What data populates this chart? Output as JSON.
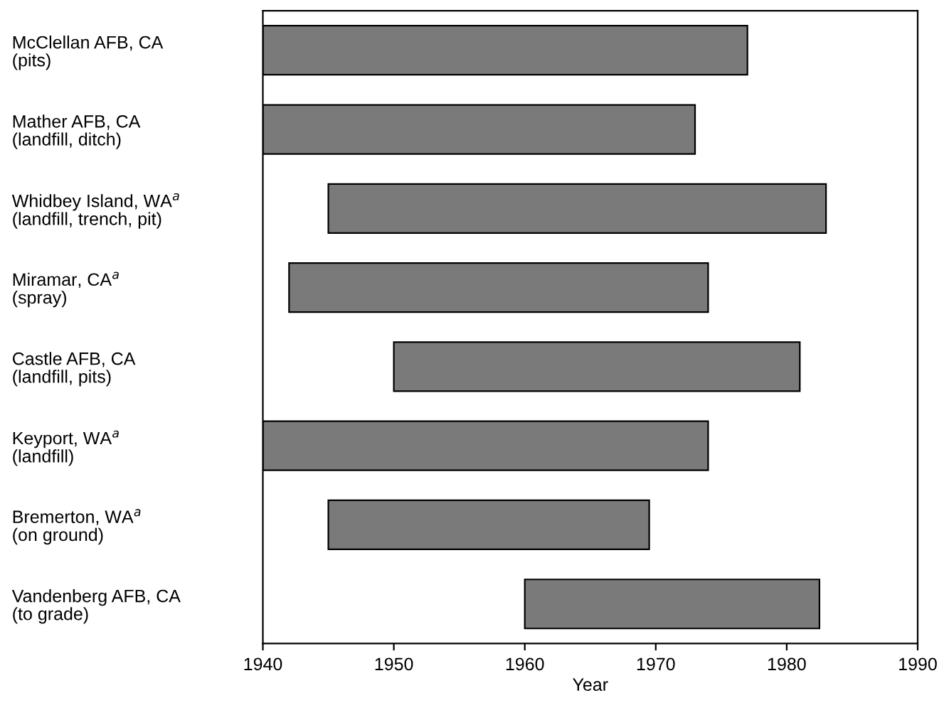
{
  "chart_data": {
    "type": "bar",
    "orientation": "horizontal",
    "xlabel": "Year",
    "categories": [
      "McClellan AFB, CA\n(pits)",
      "Mather AFB, CA\n(landfill, ditch)",
      "Whidbey Island, WA$^{a}$\n(landfill, trench, pit)",
      "Miramar, CA$^{a}$\n(spray)",
      "Castle AFB, CA\n(landfill, pits)",
      "Keyport, WA$^{a}$\n(landfill)",
      "Bremerton, WA$^{a}$\n(on ground)",
      "Vandenberg AFB, CA\n(to grade)"
    ],
    "base": [
      1940,
      1940,
      1945,
      1942,
      1950,
      1940,
      1945,
      1960
    ],
    "values": [
      37,
      33,
      38,
      32,
      31,
      34,
      24.5,
      22.5
    ],
    "color": "#7a7a7a",
    "xlim": [
      1940,
      1990
    ],
    "xticks": [
      1940,
      1950,
      1960,
      1970,
      1980,
      1990
    ],
    "grid": false,
    "legend": false
  }
}
